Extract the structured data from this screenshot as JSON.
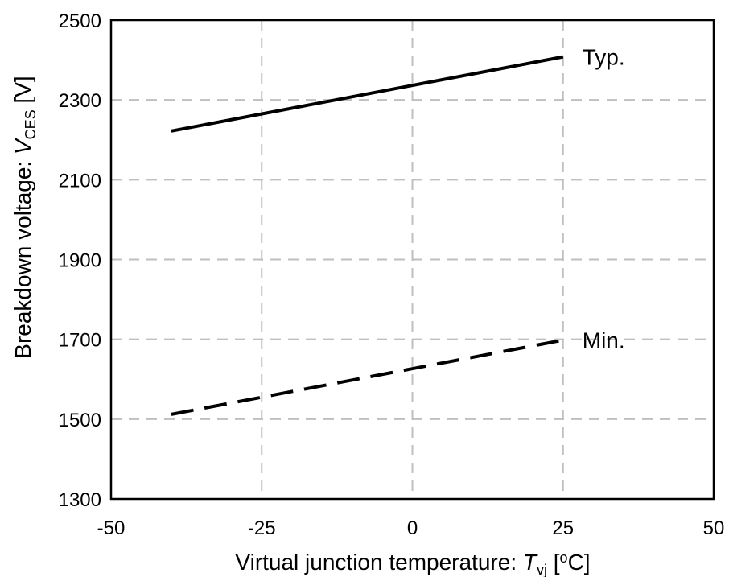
{
  "chart_data": {
    "type": "line",
    "x_axis": {
      "label_prefix": "Virtual junction temperature: ",
      "label_symbol": "T",
      "label_subscript": "vj",
      "label_unit_open": " [",
      "label_unit_sup": "o",
      "label_unit_close": "C]",
      "range": [
        -50,
        50
      ],
      "ticks": [
        -50,
        -25,
        0,
        25,
        50
      ],
      "tick_labels": [
        "-50",
        "-25",
        "0",
        "25",
        "50"
      ]
    },
    "y_axis": {
      "label_prefix": "Breakdown voltage: ",
      "label_symbol": "V",
      "label_subscript": "CES",
      "label_unit": " [V]",
      "range": [
        1300,
        2500
      ],
      "ticks": [
        1300,
        1500,
        1700,
        1900,
        2100,
        2300,
        2500
      ],
      "tick_labels": [
        "1300",
        "1500",
        "1700",
        "1900",
        "2100",
        "2300",
        "2500"
      ]
    },
    "grid": true,
    "grid_style": "dashed",
    "series": [
      {
        "name": "Typ.",
        "line_style": "solid",
        "color": "#000000",
        "x": [
          -40,
          25
        ],
        "y": [
          2222,
          2408
        ]
      },
      {
        "name": "Min.",
        "line_style": "dashed",
        "color": "#000000",
        "x": [
          -40,
          25
        ],
        "y": [
          1512,
          1698
        ]
      }
    ]
  },
  "colors": {
    "grid": "#bfbfbf",
    "frame": "#000000",
    "background": "#ffffff"
  }
}
